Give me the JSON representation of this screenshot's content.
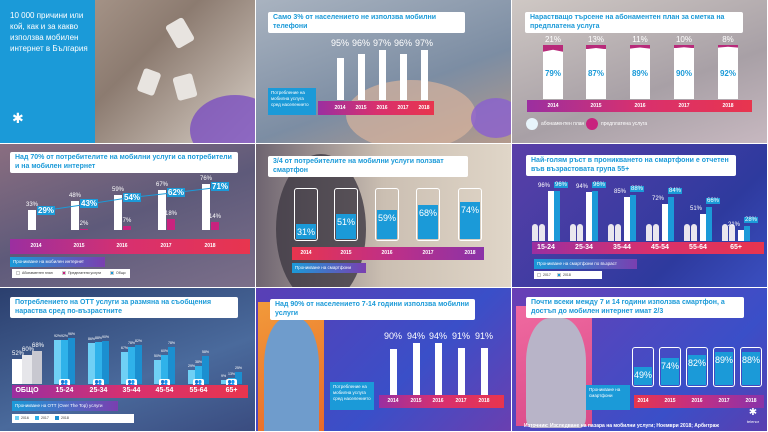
{
  "intro": {
    "title": "10 000 причини или кой, как и за какво използва мобилен интернет в България"
  },
  "source": "Източник: Изследване на пазара на мобилни услуги; Ноември 2018; Арбитраж",
  "logo": "telenor",
  "colors": {
    "blue": "#1b9ad8",
    "magenta": "#c8237e",
    "white": "#ffffff"
  },
  "chart_data": [
    {
      "type": "bar",
      "title": "Само 3% от населението не използва мобилни телефони",
      "categories": [
        "2014",
        "2015",
        "2016",
        "2017",
        "2018"
      ],
      "values": [
        95,
        96,
        97,
        96,
        97
      ],
      "labels": [
        "95%",
        "96%",
        "97%",
        "96%",
        "97%"
      ],
      "caption": "Потребление на мобилна услуга сред населението"
    },
    {
      "type": "bar",
      "stacked": true,
      "title": "Нарастващо търсене на абонаментен план за сметка на предплатена услуга",
      "categories": [
        "2014",
        "2015",
        "2016",
        "2017",
        "2018"
      ],
      "series": [
        {
          "name": "абонаментен план",
          "values": [
            79,
            87,
            89,
            90,
            92
          ],
          "labels": [
            "79%",
            "87%",
            "89%",
            "90%",
            "92%"
          ]
        },
        {
          "name": "предплатена услуга",
          "values": [
            21,
            13,
            11,
            10,
            8
          ],
          "labels": [
            "21%",
            "13%",
            "11%",
            "10%",
            "8%"
          ]
        }
      ]
    },
    {
      "type": "bar",
      "title": "Над 70% от потребителите на мобилни услуги са потребители и на мобилен интернет",
      "categories": [
        "2014",
        "2015",
        "2016",
        "2017",
        "2018"
      ],
      "series": [
        {
          "name": "Абонаментен план",
          "values": [
            33,
            48,
            59,
            67,
            76
          ],
          "labels": [
            "33%",
            "48%",
            "59%",
            "67%",
            "76%"
          ]
        },
        {
          "name": "Предплатени услуги",
          "values": [
            null,
            2,
            7,
            18,
            14
          ],
          "labels": [
            "",
            "2%",
            "7%",
            "18%",
            "14%"
          ]
        },
        {
          "name": "Общо",
          "type": "line",
          "values": [
            29,
            43,
            54,
            62,
            71
          ],
          "labels": [
            "29%",
            "43%",
            "54%",
            "62%",
            "71%"
          ]
        }
      ],
      "caption": "Проникване на мобилен интернет",
      "legend": "bottom-left"
    },
    {
      "type": "bar",
      "title": "3/4 от потребителите на мобилни услуги ползват смартфон",
      "categories": [
        "2014",
        "2015",
        "2016",
        "2017",
        "2018"
      ],
      "values": [
        31,
        51,
        59,
        68,
        74
      ],
      "labels": [
        "31%",
        "51%",
        "59%",
        "68%",
        "74%"
      ],
      "caption": "Проникване на смартфони"
    },
    {
      "type": "bar",
      "title": "Най-голям ръст в проникването на смартфони е отчетен във възрастовата група 55+",
      "categories": [
        "15-24",
        "25-34",
        "35-44",
        "45-54",
        "55-64",
        "65+"
      ],
      "series": [
        {
          "name": "2017",
          "values": [
            96,
            94,
            85,
            72,
            51,
            21
          ],
          "labels": [
            "96%",
            "94%",
            "85%",
            "72%",
            "51%",
            "21%"
          ]
        },
        {
          "name": "2018",
          "values": [
            96,
            96,
            88,
            84,
            66,
            28
          ],
          "labels": [
            "96%",
            "96%",
            "88%",
            "84%",
            "66%",
            "28%"
          ]
        }
      ],
      "caption": "Проникване на смартфони по възраст",
      "legend": "bottom-left"
    },
    {
      "type": "bar",
      "title": "Потреблението на OTT услуги за размяна на съобщения нараства сред по-възрастните",
      "categories": [
        "ОБЩО",
        "15-24",
        "25-34",
        "35-44",
        "45-54",
        "55-64",
        "65+"
      ],
      "series": [
        {
          "name": "2016",
          "values": [
            52,
            92,
            86,
            67,
            50,
            29,
            9
          ],
          "labels": [
            "52%",
            "92%",
            "86%",
            "67%",
            "50%",
            "29%",
            "9%"
          ]
        },
        {
          "name": "2017",
          "values": [
            60,
            92,
            88,
            78,
            60,
            38,
            13
          ],
          "labels": [
            "60%",
            "92%",
            "88%",
            "78%",
            "60%",
            "38%",
            "13%"
          ]
        },
        {
          "name": "2018",
          "values": [
            68,
            96,
            90,
            82,
            78,
            58,
            25
          ],
          "labels": [
            "68%",
            "96%",
            "90%",
            "82%",
            "78%",
            "58%",
            "25%"
          ]
        }
      ],
      "caption": "Проникване на OTT (Over The Top) услуги",
      "legend": "bottom-left"
    },
    {
      "type": "bar",
      "title": "Над 90% от населението 7-14 години използва мобилни услуги",
      "categories": [
        "2014",
        "2015",
        "2016",
        "2017",
        "2018"
      ],
      "values": [
        90,
        94,
        94,
        91,
        91
      ],
      "labels": [
        "90%",
        "94%",
        "94%",
        "91%",
        "91%"
      ],
      "caption": "Потребление на мобилна услуга сред населението"
    },
    {
      "type": "bar",
      "title": "Почти всеки между 7 и 14 години използва смартфон, а достъп до мобилен интернет имат 2/3",
      "categories": [
        "2014",
        "2015",
        "2016",
        "2017",
        "2018"
      ],
      "values": [
        49,
        74,
        82,
        89,
        88
      ],
      "labels": [
        "49%",
        "74%",
        "82%",
        "89%",
        "88%"
      ],
      "caption": "Проникване на смартфони"
    }
  ]
}
